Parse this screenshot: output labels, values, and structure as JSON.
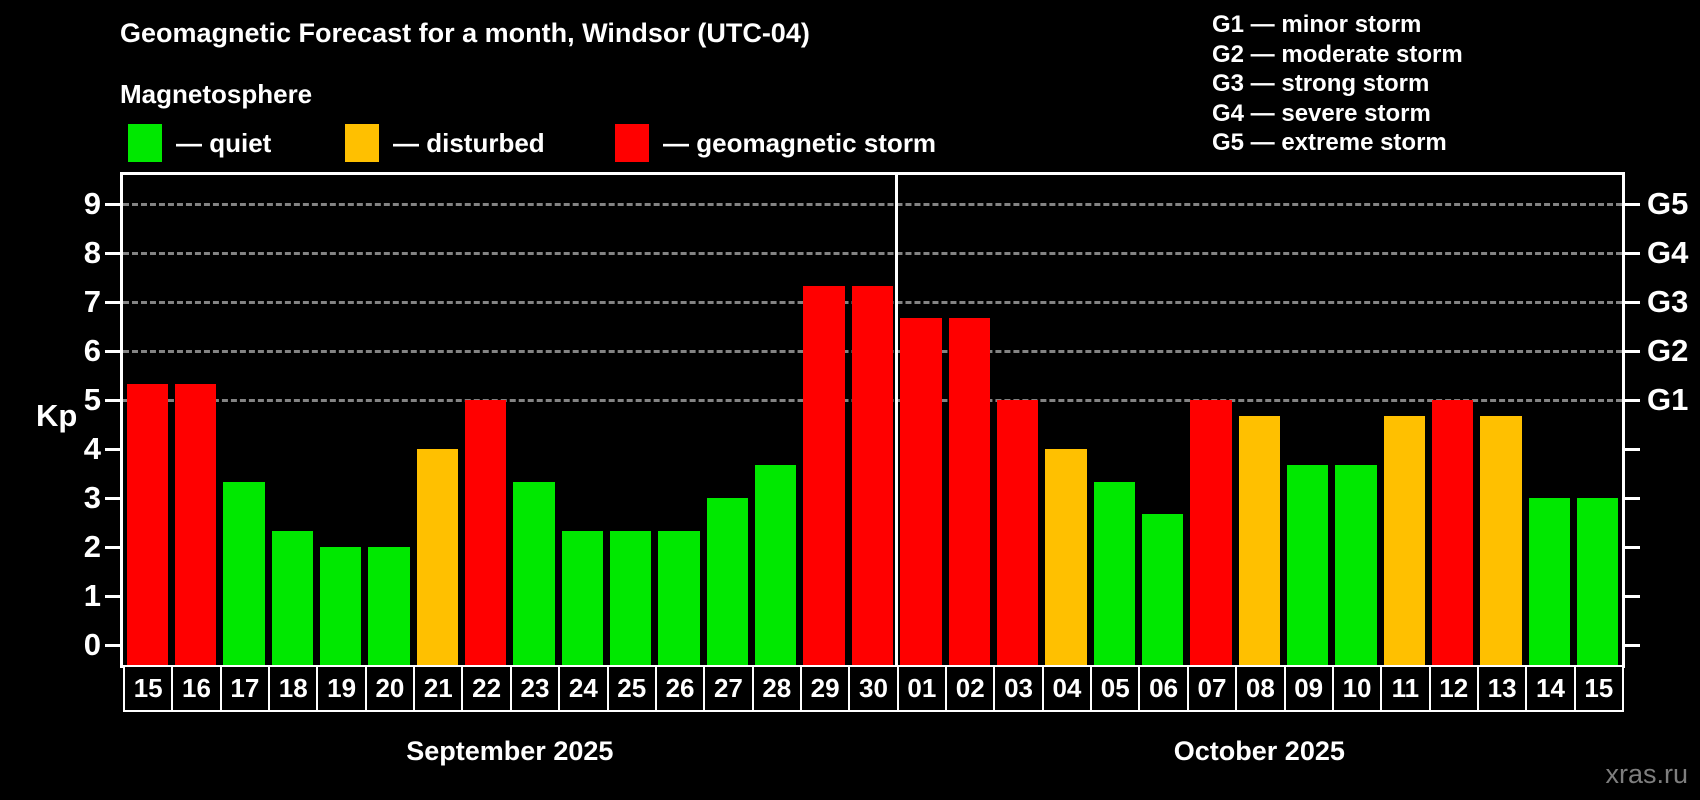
{
  "title": "Geomagnetic Forecast for a month, Windsor (UTC-04)",
  "subtitle": "Magnetosphere",
  "legend": [
    {
      "status": "quiet",
      "label": "— quiet"
    },
    {
      "status": "disturbed",
      "label": "— disturbed"
    },
    {
      "status": "storm",
      "label": "— geomagnetic storm"
    }
  ],
  "g_legend": [
    "G1 — minor storm",
    "G2 — moderate storm",
    "G3 — strong storm",
    "G4 — severe storm",
    "G5 — extreme storm"
  ],
  "colors": {
    "quiet": "#00e800",
    "disturbed": "#ffc000",
    "storm": "#ff0000",
    "grid": "#9a9a9a",
    "axis": "#ffffff",
    "background": "#000000",
    "watermark_text": "#7e7e7e"
  },
  "chart_data": {
    "type": "bar",
    "title": "Geomagnetic Forecast for a month, Windsor (UTC-04)",
    "ylabel": "Kp",
    "ylim": [
      0,
      9
    ],
    "yticks": [
      0,
      1,
      2,
      3,
      4,
      5,
      6,
      7,
      8,
      9
    ],
    "gridlines_at": [
      5,
      6,
      7,
      8,
      9
    ],
    "grid_style": "dashed",
    "right_axis_labels": [
      {
        "kp": 5,
        "label": "G1"
      },
      {
        "kp": 6,
        "label": "G2"
      },
      {
        "kp": 7,
        "label": "G3"
      },
      {
        "kp": 8,
        "label": "G4"
      },
      {
        "kp": 9,
        "label": "G5"
      }
    ],
    "months": [
      {
        "label": "September 2025",
        "days": [
          {
            "day": "15",
            "kp": 5.33,
            "status": "storm"
          },
          {
            "day": "16",
            "kp": 5.33,
            "status": "storm"
          },
          {
            "day": "17",
            "kp": 3.33,
            "status": "quiet"
          },
          {
            "day": "18",
            "kp": 2.33,
            "status": "quiet"
          },
          {
            "day": "19",
            "kp": 2.0,
            "status": "quiet"
          },
          {
            "day": "20",
            "kp": 2.0,
            "status": "quiet"
          },
          {
            "day": "21",
            "kp": 4.0,
            "status": "disturbed"
          },
          {
            "day": "22",
            "kp": 5.0,
            "status": "storm"
          },
          {
            "day": "23",
            "kp": 3.33,
            "status": "quiet"
          },
          {
            "day": "24",
            "kp": 2.33,
            "status": "quiet"
          },
          {
            "day": "25",
            "kp": 2.33,
            "status": "quiet"
          },
          {
            "day": "26",
            "kp": 2.33,
            "status": "quiet"
          },
          {
            "day": "27",
            "kp": 3.0,
            "status": "quiet"
          },
          {
            "day": "28",
            "kp": 3.67,
            "status": "quiet"
          },
          {
            "day": "29",
            "kp": 7.33,
            "status": "storm"
          },
          {
            "day": "30",
            "kp": 7.33,
            "status": "storm"
          }
        ]
      },
      {
        "label": "October 2025",
        "days": [
          {
            "day": "01",
            "kp": 6.67,
            "status": "storm"
          },
          {
            "day": "02",
            "kp": 6.67,
            "status": "storm"
          },
          {
            "day": "03",
            "kp": 5.0,
            "status": "storm"
          },
          {
            "day": "04",
            "kp": 4.0,
            "status": "disturbed"
          },
          {
            "day": "05",
            "kp": 3.33,
            "status": "quiet"
          },
          {
            "day": "06",
            "kp": 2.67,
            "status": "quiet"
          },
          {
            "day": "07",
            "kp": 5.0,
            "status": "storm"
          },
          {
            "day": "08",
            "kp": 4.67,
            "status": "disturbed"
          },
          {
            "day": "09",
            "kp": 3.67,
            "status": "quiet"
          },
          {
            "day": "10",
            "kp": 3.67,
            "status": "quiet"
          },
          {
            "day": "11",
            "kp": 4.67,
            "status": "disturbed"
          },
          {
            "day": "12",
            "kp": 5.0,
            "status": "storm"
          },
          {
            "day": "13",
            "kp": 4.67,
            "status": "disturbed"
          },
          {
            "day": "14",
            "kp": 3.0,
            "status": "quiet"
          },
          {
            "day": "15",
            "kp": 3.0,
            "status": "quiet"
          }
        ]
      }
    ]
  },
  "watermark": "xras.ru"
}
